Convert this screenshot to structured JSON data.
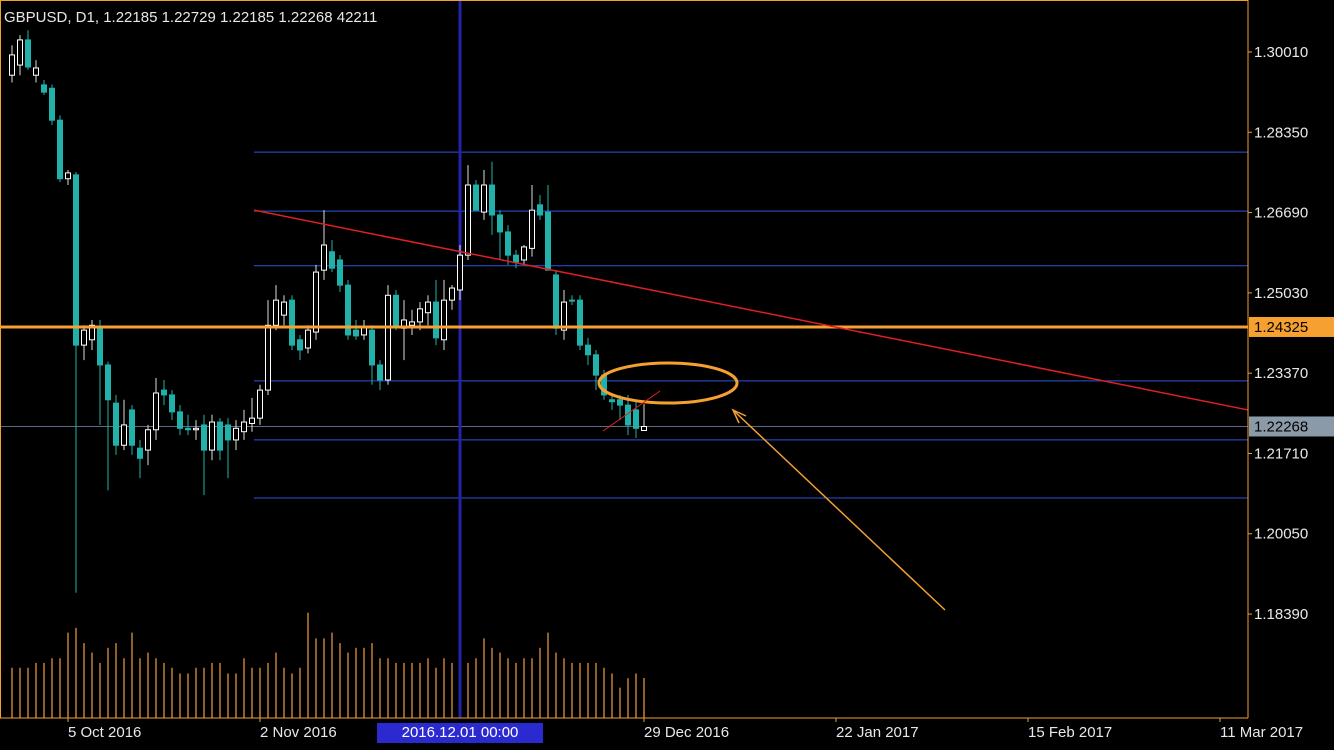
{
  "chart_data": {
    "type": "candlestick",
    "title": "GBPUSD, D1, 1.22185 1.22729 1.22185 1.22268 42211",
    "open": [
      1.2953,
      1.2974,
      1.3026,
      1.2953,
      1.2933,
      1.2926,
      1.286,
      1.2739,
      1.2747,
      1.2395,
      1.2406,
      1.243,
      1.2354,
      1.2275,
      1.2188,
      1.2261,
      1.2182,
      1.2178,
      1.222,
      1.2302,
      1.2292,
      1.2257,
      1.2223,
      1.222,
      1.223,
      1.2178,
      1.2236,
      1.223,
      1.2199,
      1.2216,
      1.2233,
      1.2244,
      1.2302,
      1.2436,
      1.2457,
      1.2488,
      1.2406,
      1.2389,
      1.2422,
      1.255,
      1.2588,
      1.2571,
      1.2519,
      1.2426,
      1.2416,
      1.2426,
      1.2354,
      1.2323,
      1.2498,
      1.243,
      1.2436,
      1.2443,
      1.2462,
      1.2484,
      1.2406,
      1.2488,
      1.2509,
      1.2581,
      1.2726,
      1.267,
      1.2726,
      1.2664,
      1.2629,
      1.2581,
      1.2571,
      1.2595,
      1.2685,
      1.267,
      1.254,
      1.2426,
      1.2488,
      1.2488,
      1.2395,
      1.2375,
      1.2333,
      1.2282,
      1.2282,
      1.2271,
      1.2261,
      1.22185
    ],
    "high": [
      1.3015,
      1.3036,
      1.3046,
      1.2984,
      1.2943,
      1.2934,
      1.287,
      1.2757,
      1.2753,
      1.2436,
      1.2447,
      1.2447,
      1.2361,
      1.2292,
      1.2282,
      1.2271,
      1.2199,
      1.223,
      1.2327,
      1.2323,
      1.2302,
      1.2271,
      1.2251,
      1.224,
      1.2251,
      1.2251,
      1.2244,
      1.2244,
      1.224,
      1.2261,
      1.2286,
      1.2313,
      1.2488,
      1.2519,
      1.2498,
      1.2498,
      1.2416,
      1.2436,
      1.2561,
      1.2674,
      1.2612,
      1.2581,
      1.253,
      1.2447,
      1.2447,
      1.2436,
      1.2364,
      1.2519,
      1.2509,
      1.2488,
      1.2468,
      1.2484,
      1.2498,
      1.253,
      1.253,
      1.2519,
      1.2602,
      1.2767,
      1.2736,
      1.2757,
      1.2774,
      1.2674,
      1.2643,
      1.2592,
      1.2602,
      1.2726,
      1.2705,
      1.2726,
      1.255,
      1.2509,
      1.2498,
      1.2498,
      1.241,
      1.2385,
      1.2344,
      1.2292,
      1.2292,
      1.2292,
      1.2282,
      1.22729
    ],
    "low": [
      1.2938,
      1.2953,
      1.2964,
      1.2938,
      1.2912,
      1.285,
      1.2732,
      1.2726,
      1.1883,
      1.2364,
      1.2385,
      1.223,
      1.2095,
      1.2168,
      1.2178,
      1.2168,
      1.212,
      1.2147,
      1.2199,
      1.2271,
      1.224,
      1.2209,
      1.2209,
      1.2199,
      1.2085,
      1.2157,
      1.2157,
      1.212,
      1.2178,
      1.2199,
      1.2216,
      1.223,
      1.2292,
      1.2426,
      1.2436,
      1.2385,
      1.2364,
      1.2378,
      1.2406,
      1.253,
      1.2546,
      1.2505,
      1.2406,
      1.2406,
      1.2406,
      1.2313,
      1.2302,
      1.2313,
      1.2426,
      1.2364,
      1.2416,
      1.2426,
      1.2436,
      1.2395,
      1.2385,
      1.2468,
      1.2488,
      1.2571,
      1.2674,
      1.2654,
      1.2623,
      1.2571,
      1.2561,
      1.2554,
      1.2561,
      1.2578,
      1.2654,
      1.255,
      1.2416,
      1.2406,
      1.2478,
      1.2385,
      1.2354,
      1.2302,
      1.2282,
      1.2261,
      1.224,
      1.2209,
      1.2203,
      1.22185
    ],
    "close": [
      1.2995,
      1.3026,
      1.297,
      1.2968,
      1.2918,
      1.286,
      1.2739,
      1.2751,
      1.2395,
      1.2426,
      1.2436,
      1.2354,
      1.2282,
      1.2188,
      1.223,
      1.2188,
      1.2161,
      1.222,
      1.2296,
      1.2292,
      1.2257,
      1.2223,
      1.222,
      1.2223,
      1.2178,
      1.2236,
      1.2178,
      1.2199,
      1.2223,
      1.2236,
      1.2244,
      1.2302,
      1.2436,
      1.2488,
      1.2484,
      1.2395,
      1.2385,
      1.2426,
      1.2546,
      1.2602,
      1.2554,
      1.2519,
      1.2416,
      1.2414,
      1.2434,
      1.2354,
      1.2323,
      1.2498,
      1.2436,
      1.2447,
      1.2443,
      1.247,
      1.2484,
      1.241,
      1.2488,
      1.2513,
      1.2581,
      1.2726,
      1.2674,
      1.2726,
      1.2664,
      1.2629,
      1.2581,
      1.2567,
      1.2598,
      1.2674,
      1.2664,
      1.255,
      1.243,
      1.2484,
      1.2486,
      1.2395,
      1.2375,
      1.2333,
      1.2292,
      1.2278,
      1.2271,
      1.223,
      1.2223,
      1.22268
    ],
    "close_label": "1.22268",
    "volume": [
      53000,
      53000,
      53000,
      58000,
      58000,
      63000,
      63000,
      90000,
      95000,
      79000,
      69000,
      58000,
      74000,
      79000,
      63000,
      90000,
      63000,
      69000,
      63000,
      58000,
      53000,
      47000,
      47000,
      53000,
      53000,
      58000,
      58000,
      47000,
      47000,
      63000,
      53000,
      53000,
      58000,
      69000,
      53000,
      47000,
      53000,
      111000,
      84000,
      84000,
      90000,
      79000,
      69000,
      74000,
      74000,
      79000,
      63000,
      63000,
      58000,
      58000,
      58000,
      58000,
      63000,
      53000,
      63000,
      58000,
      74000,
      58000,
      63000,
      84000,
      74000,
      69000,
      63000,
      58000,
      63000,
      63000,
      74000,
      90000,
      69000,
      63000,
      58000,
      58000,
      58000,
      58000,
      53000,
      47000,
      32000,
      42000,
      47000,
      42211
    ],
    "volume_ylim": [
      0,
      757000
    ],
    "xlim": [
      -1.5,
      154.5
    ],
    "xticks": [
      {
        "value": 7,
        "label": "5 Oct 2016"
      },
      {
        "value": 31,
        "label": "2 Nov 2016"
      },
      {
        "value": 79,
        "label": "29 Dec 2016"
      },
      {
        "value": 103,
        "label": "22 Jan 2017"
      },
      {
        "value": 127,
        "label": "15 Feb 2017"
      },
      {
        "value": 151,
        "label": "11 Mar 2017"
      }
    ],
    "ylim": [
      1.16241,
      1.31085
    ],
    "yticks": [
      {
        "value": 1.3001,
        "label": "1.30010"
      },
      {
        "value": 1.2835,
        "label": "1.28350"
      },
      {
        "value": 1.2669,
        "label": "1.26690"
      },
      {
        "value": 1.2503,
        "label": "1.25030"
      },
      {
        "value": 1.2337,
        "label": "1.23370"
      },
      {
        "value": 1.2171,
        "label": "1.21710"
      },
      {
        "value": 1.2005,
        "label": "1.20050"
      },
      {
        "value": 1.1839,
        "label": "1.18390"
      }
    ],
    "crosshair": {
      "x": 56,
      "label": "2016.12.01 00:00"
    },
    "key_level": {
      "value": 1.24325,
      "label": "1.24325",
      "color": "#f5a030"
    },
    "levels": {
      "x_start": 30.25,
      "values": [
        1.2794,
        1.2672,
        1.2559,
        1.2321,
        1.2199,
        1.2079
      ],
      "color": "#2a55dd"
    },
    "trendline": {
      "x": [
        30.25,
        154.5
      ],
      "values": [
        1.2674,
        1.2261
      ],
      "color": "#e02020"
    },
    "bull_color": "#ffffff",
    "bear_color": "#20b2aa",
    "volume_color": "#f0a040"
  }
}
